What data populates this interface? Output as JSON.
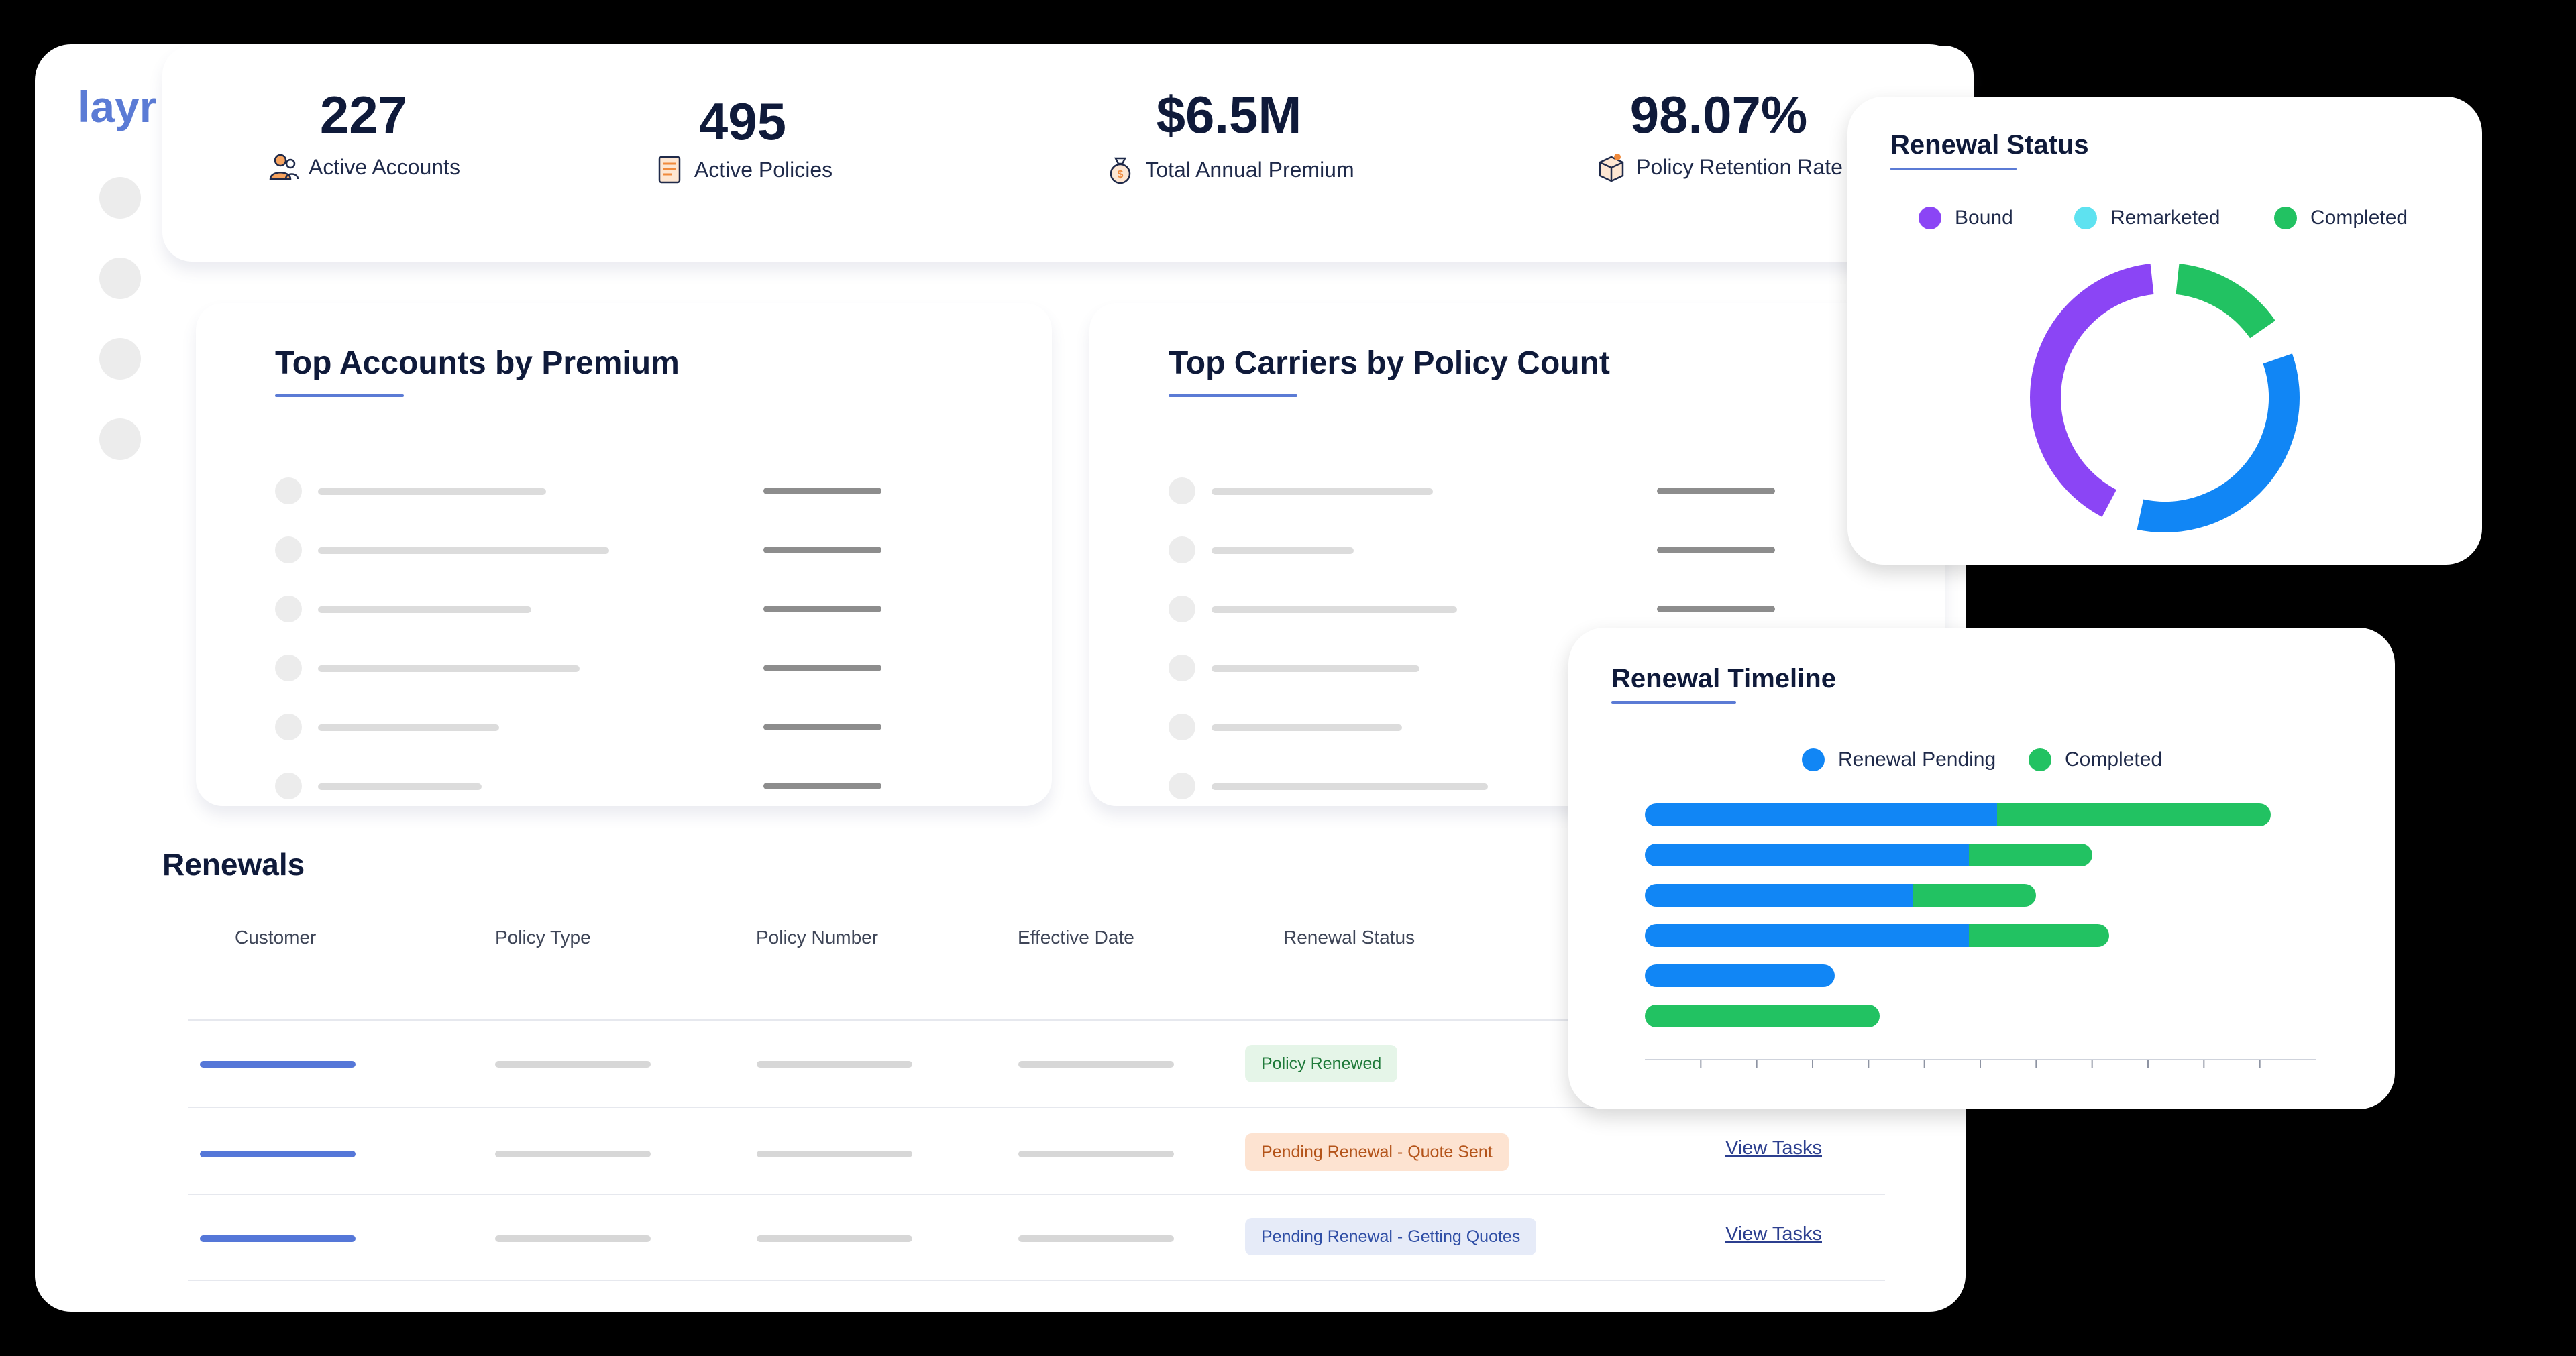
{
  "app": {
    "logo_text": "layr"
  },
  "stats": [
    {
      "value": "227",
      "label": "Active Accounts",
      "icon": "people-icon"
    },
    {
      "value": "495",
      "label": "Active Policies",
      "icon": "document-icon"
    },
    {
      "value": "$6.5M",
      "label": "Total Annual Premium",
      "icon": "money-bag-icon"
    },
    {
      "value": "98.07%",
      "label": "Policy Retention Rate",
      "icon": "box-icon"
    }
  ],
  "panels": {
    "top_accounts": {
      "title": "Top Accounts by Premium"
    },
    "top_carriers": {
      "title": "Top Carriers by Policy Count"
    }
  },
  "renewals": {
    "title": "Renewals",
    "columns": [
      "Customer",
      "Policy Type",
      "Policy Number",
      "Effective Date",
      "Renewal Status"
    ],
    "rows": [
      {
        "status": "Policy Renewed",
        "status_color": "#1f7a3a",
        "status_bg": "#e5f5e8",
        "action": ""
      },
      {
        "status": "Pending Renewal - Quote Sent",
        "status_color": "#b4541a",
        "status_bg": "#fde3d1",
        "action": "View Tasks"
      },
      {
        "status": "Pending Renewal - Getting Quotes",
        "status_color": "#2f4ea5",
        "status_bg": "#e6ebf8",
        "action": "View Tasks"
      }
    ]
  },
  "renewal_status": {
    "title": "Renewal Status",
    "legend": [
      {
        "label": "Bound",
        "color": "#8b45f5"
      },
      {
        "label": "Remarketed",
        "color": "#5ee2f0"
      },
      {
        "label": "Completed",
        "color": "#22c262"
      }
    ],
    "chart_data": {
      "type": "pie",
      "labels": [
        "Completed",
        "Renewal Pending",
        "Bound"
      ],
      "values": [
        0.16,
        0.36,
        0.43
      ],
      "colors": [
        "#22c262",
        "#1186f5",
        "#8b45f5"
      ]
    }
  },
  "renewal_timeline": {
    "title": "Renewal Timeline",
    "legend": [
      {
        "label": "Renewal Pending",
        "color": "#1186f5"
      },
      {
        "label": "Completed",
        "color": "#22c262"
      }
    ],
    "chart_data": {
      "type": "bar",
      "series": [
        {
          "name": "Renewal Pending",
          "values": [
            6.3,
            5.8,
            4.8,
            5.8,
            3.4,
            0
          ]
        },
        {
          "name": "Completed",
          "values": [
            4.9,
            2.2,
            2.2,
            2.5,
            0,
            4.2
          ]
        }
      ],
      "xlim": [
        0,
        12
      ]
    }
  }
}
